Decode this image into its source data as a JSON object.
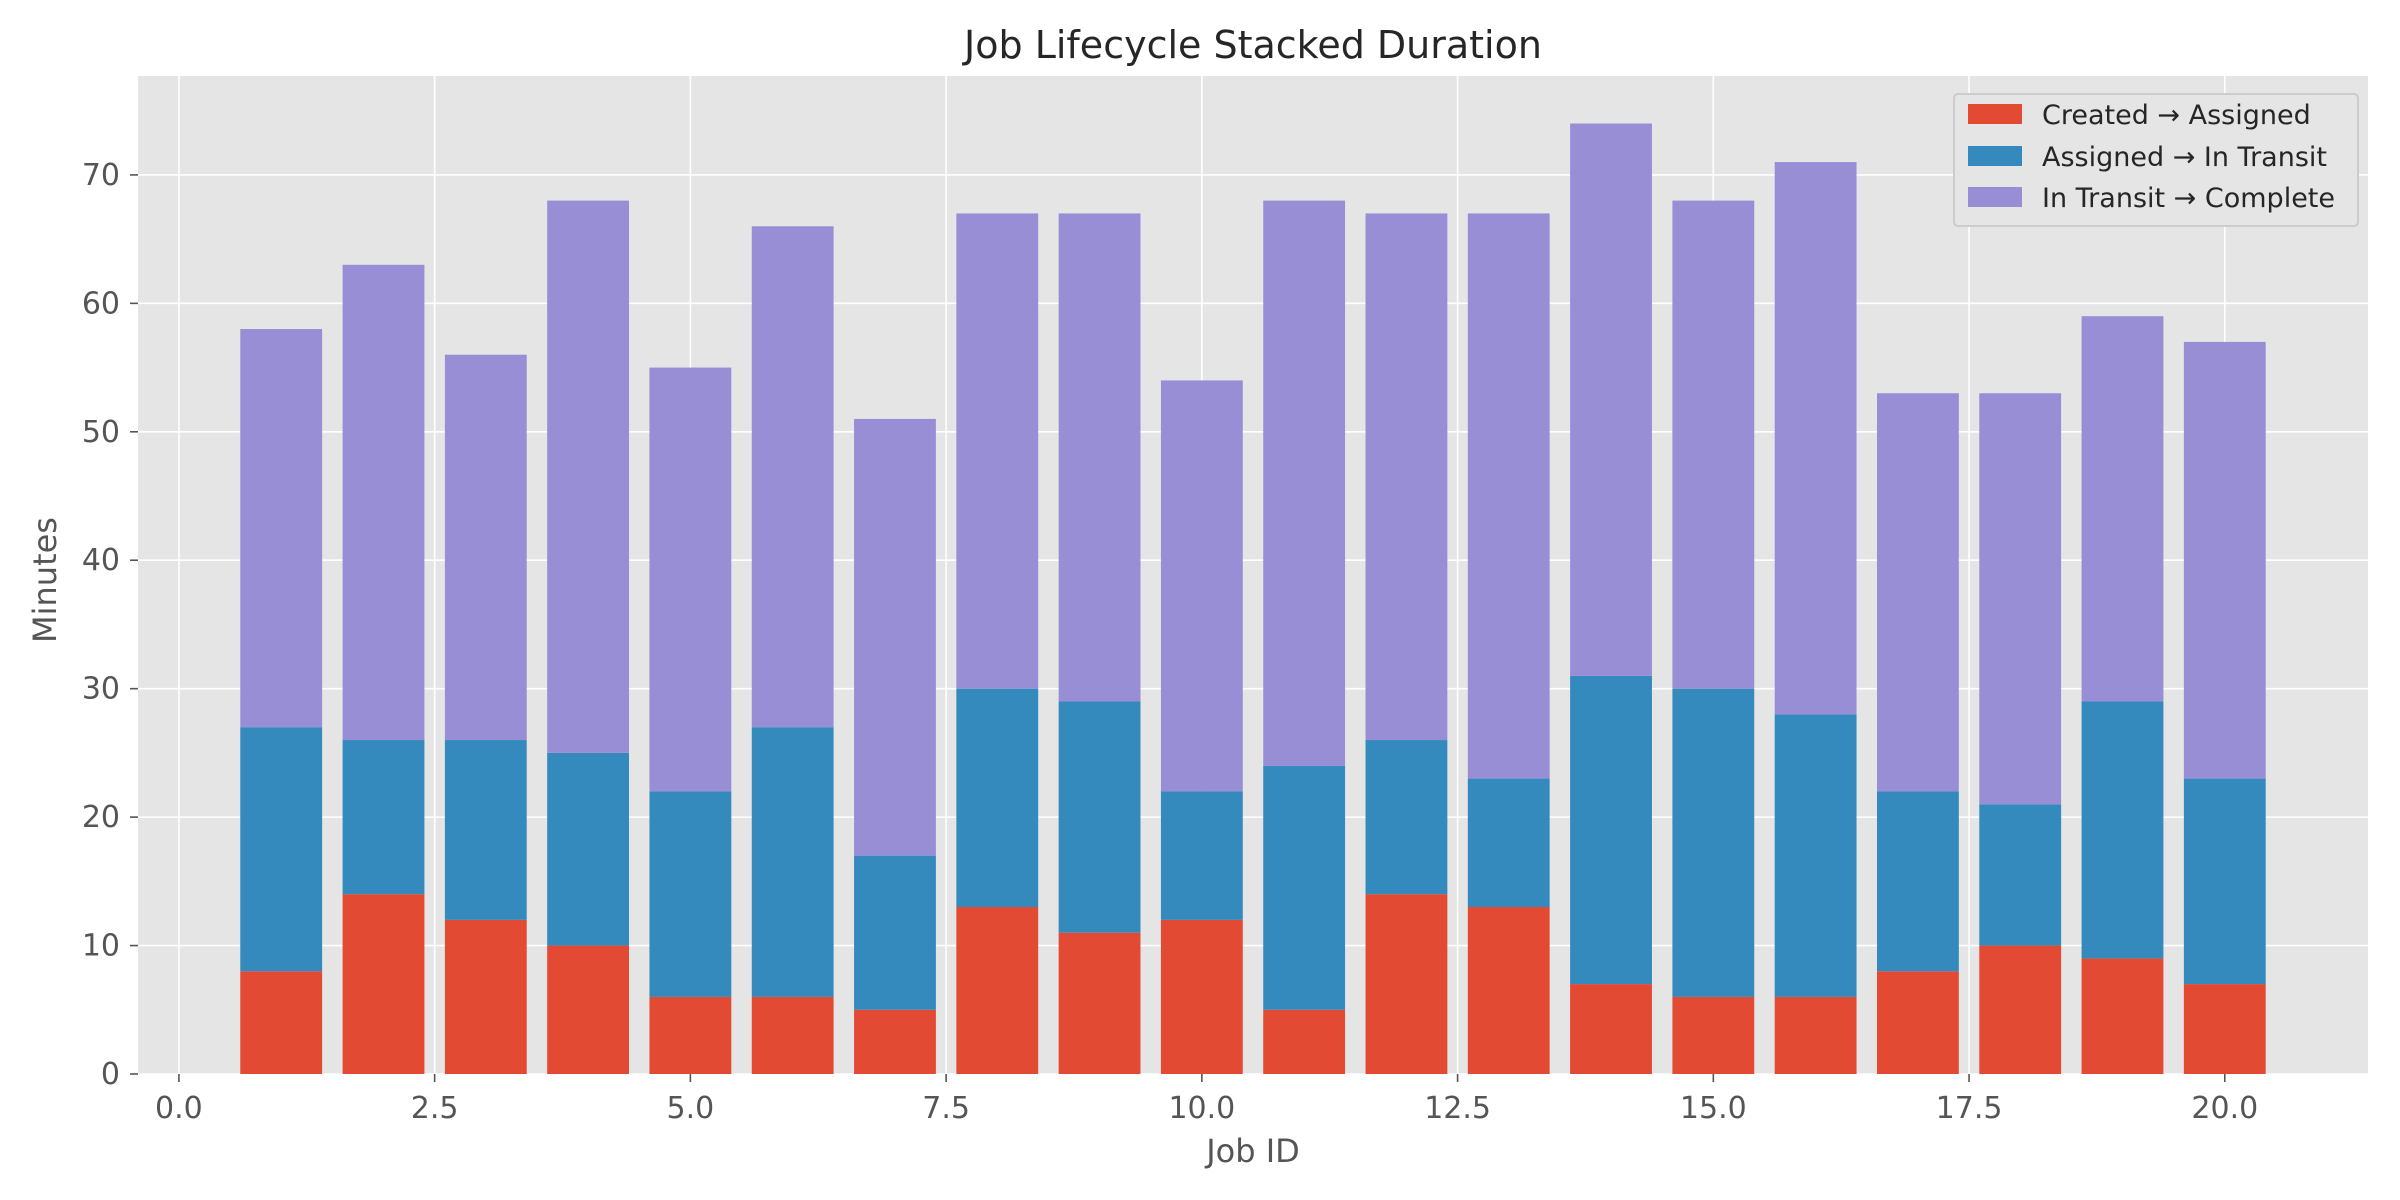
{
  "chart_data": {
    "type": "bar",
    "stacked": true,
    "title": "Job Lifecycle Stacked Duration",
    "xlabel": "Job ID",
    "ylabel": "Minutes",
    "x": [
      1,
      2,
      3,
      4,
      5,
      6,
      7,
      8,
      9,
      10,
      11,
      12,
      13,
      14,
      15,
      16,
      17,
      18,
      19,
      20
    ],
    "xlim": [
      -0.4,
      21.4
    ],
    "ylim": [
      0,
      77.7
    ],
    "xticks": [
      0.0,
      2.5,
      5.0,
      7.5,
      10.0,
      12.5,
      15.0,
      17.5,
      20.0
    ],
    "xtick_labels": [
      "0.0",
      "2.5",
      "5.0",
      "7.5",
      "10.0",
      "12.5",
      "15.0",
      "17.5",
      "20.0"
    ],
    "yticks": [
      0,
      10,
      20,
      30,
      40,
      50,
      60,
      70
    ],
    "ytick_labels": [
      "0",
      "10",
      "20",
      "30",
      "40",
      "50",
      "60",
      "70"
    ],
    "grid": true,
    "legend_position": "top-right",
    "series": [
      {
        "name": "Created → Assigned",
        "color": "#E24A33",
        "values": [
          8,
          14,
          12,
          10,
          6,
          6,
          5,
          13,
          11,
          12,
          5,
          14,
          13,
          7,
          6,
          6,
          8,
          10,
          9,
          7
        ]
      },
      {
        "name": "Assigned → In Transit",
        "color": "#348ABD",
        "values": [
          19,
          12,
          14,
          15,
          16,
          21,
          12,
          17,
          18,
          10,
          19,
          12,
          10,
          24,
          24,
          22,
          14,
          11,
          20,
          16
        ]
      },
      {
        "name": "In Transit → Complete",
        "color": "#988ED5",
        "values": [
          31,
          37,
          30,
          43,
          33,
          39,
          34,
          37,
          38,
          32,
          44,
          41,
          44,
          43,
          38,
          43,
          31,
          32,
          30,
          34
        ]
      }
    ]
  }
}
